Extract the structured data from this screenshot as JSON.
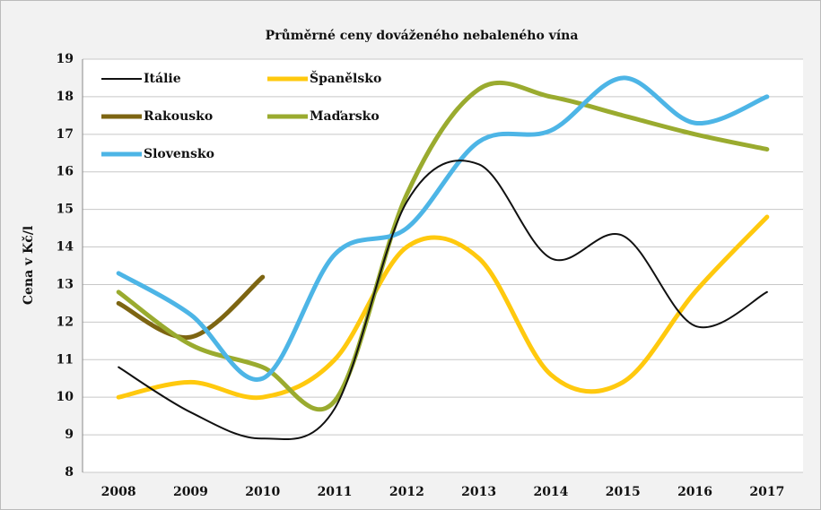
{
  "chart_data": {
    "type": "line",
    "title": "Průměrné ceny dováženého nebaleného vína",
    "ylabel": "Cena v Kč/l",
    "categories": [
      "2008",
      "2009",
      "2010",
      "2011",
      "2012",
      "2013",
      "2014",
      "2015",
      "2016",
      "2017"
    ],
    "series": [
      {
        "name": "Itálie",
        "color": "#111111",
        "values": [
          10.8,
          9.6,
          8.9,
          9.7,
          15.2,
          16.2,
          13.7,
          14.3,
          11.9,
          12.8
        ]
      },
      {
        "name": "Španělsko",
        "color": "#ffc90e",
        "values": [
          10.0,
          10.4,
          10.0,
          11.0,
          14.0,
          13.7,
          10.6,
          10.4,
          12.8,
          14.8
        ]
      },
      {
        "name": "Rakousko",
        "color": "#7d6512",
        "values": [
          12.5,
          11.6,
          13.2,
          null,
          null,
          null,
          null,
          null,
          null,
          null
        ]
      },
      {
        "name": "Maďarsko",
        "color": "#9aab2f",
        "values": [
          12.8,
          11.4,
          10.8,
          9.9,
          15.4,
          18.2,
          18.0,
          17.5,
          17.0,
          16.6
        ]
      },
      {
        "name": "Slovensko",
        "color": "#4db5e6",
        "values": [
          13.3,
          12.2,
          10.5,
          13.8,
          14.5,
          16.8,
          17.1,
          18.5,
          17.3,
          18.0
        ]
      }
    ],
    "ylim": [
      8,
      19
    ],
    "yticks": [
      8,
      9,
      10,
      11,
      12,
      13,
      14,
      15,
      16,
      17,
      18,
      19
    ],
    "grid": true,
    "legend": "upper left",
    "smooth": true
  }
}
